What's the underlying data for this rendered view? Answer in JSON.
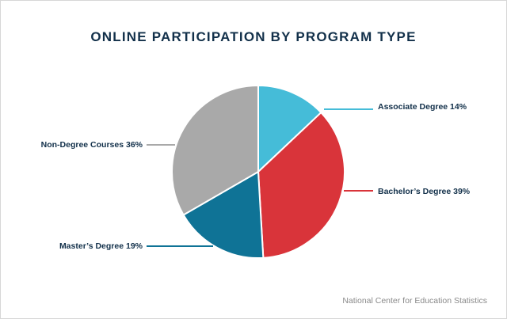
{
  "chart_data": {
    "type": "pie",
    "title": "ONLINE PARTICIPATION BY PROGRAM TYPE",
    "source": "National Center for Education Statistics",
    "slices": [
      {
        "label": "Associate Degree 14%",
        "value": 14,
        "color": "#45bcd8"
      },
      {
        "label": "Bachelor’s Degree 39%",
        "value": 39,
        "color": "#d9343a"
      },
      {
        "label": "Master’s Degree 19%",
        "value": 19,
        "color": "#0f7396"
      },
      {
        "label": "Non-Degree Courses 36%",
        "value": 36,
        "color": "#a9a9a9"
      }
    ]
  }
}
